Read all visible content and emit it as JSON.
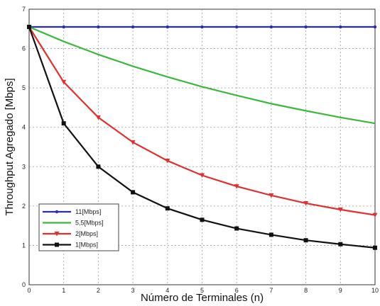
{
  "chart_data": {
    "type": "line",
    "title": "",
    "xlabel": "Número de Terminales (n)",
    "ylabel": "Throughput Agregado [Mbps]",
    "xlim": [
      0,
      10
    ],
    "ylim": [
      0,
      7
    ],
    "x": [
      0,
      1,
      2,
      3,
      4,
      5,
      6,
      7,
      8,
      9,
      10
    ],
    "x_ticks": [
      "0",
      "1",
      "2",
      "3",
      "4",
      "5",
      "6",
      "7",
      "8",
      "9",
      "10"
    ],
    "y_ticks": [
      "0",
      "1",
      "2",
      "3",
      "4",
      "5",
      "6",
      "7"
    ],
    "grid": true,
    "legend_position": "bottom-left",
    "series": [
      {
        "name": "11[Mbps]",
        "color": "#2b2bb8",
        "marker": "circle",
        "values": [
          6.55,
          6.55,
          6.55,
          6.55,
          6.55,
          6.55,
          6.55,
          6.55,
          6.55,
          6.55,
          6.55
        ]
      },
      {
        "name": "5,5[Mbps]",
        "color": "#3cb83c",
        "marker": "none",
        "values": [
          6.55,
          6.18,
          5.85,
          5.55,
          5.28,
          5.03,
          4.81,
          4.6,
          4.42,
          4.25,
          4.1
        ]
      },
      {
        "name": "2[Mbps]",
        "color": "#e03030",
        "marker": "triangle-down",
        "values": [
          6.55,
          5.15,
          4.25,
          3.62,
          3.15,
          2.78,
          2.5,
          2.27,
          2.07,
          1.91,
          1.77
        ]
      },
      {
        "name": "1[Mbps]",
        "color": "#111111",
        "marker": "square",
        "values": [
          6.55,
          4.1,
          3.0,
          2.35,
          1.94,
          1.65,
          1.43,
          1.27,
          1.13,
          1.03,
          0.94
        ]
      }
    ]
  }
}
